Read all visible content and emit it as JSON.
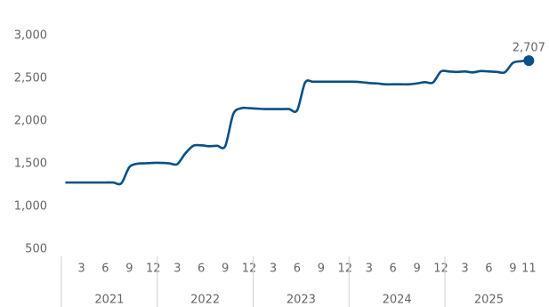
{
  "chart_data": {
    "type": "line",
    "categories": [
      null,
      null,
      "3",
      null,
      null,
      "6",
      null,
      null,
      "9",
      null,
      null,
      "12",
      null,
      null,
      "3",
      null,
      null,
      "6",
      null,
      null,
      "9",
      null,
      null,
      "12",
      null,
      null,
      "3",
      null,
      null,
      "6",
      null,
      null,
      "9",
      null,
      null,
      "12",
      null,
      null,
      "3",
      null,
      null,
      "6",
      null,
      null,
      "9",
      null,
      null,
      "12",
      null,
      null,
      "3",
      null,
      null,
      "6",
      null,
      null,
      "9",
      null,
      "11"
    ],
    "years": [
      "2021",
      "2022",
      "2023",
      "2024",
      "2025"
    ],
    "series": [
      {
        "color": "#0b4f86",
        "values": [
          1280,
          1280,
          1280,
          1280,
          1280,
          1280,
          1280,
          1270,
          1460,
          1500,
          1505,
          1510,
          1510,
          1505,
          1495,
          1620,
          1710,
          1715,
          1705,
          1710,
          1705,
          2080,
          2150,
          2150,
          2145,
          2140,
          2140,
          2140,
          2140,
          2125,
          2450,
          2460,
          2460,
          2460,
          2460,
          2460,
          2460,
          2455,
          2445,
          2440,
          2430,
          2430,
          2430,
          2430,
          2440,
          2455,
          2450,
          2580,
          2580,
          2575,
          2580,
          2570,
          2585,
          2580,
          2575,
          2570,
          2680,
          2700,
          2707
        ],
        "value_labels": [
          null,
          null,
          null,
          null,
          null,
          null,
          null,
          null,
          null,
          null,
          null,
          null,
          null,
          null,
          null,
          null,
          null,
          null,
          null,
          null,
          null,
          null,
          null,
          null,
          null,
          null,
          null,
          null,
          null,
          null,
          null,
          null,
          null,
          null,
          null,
          null,
          null,
          null,
          null,
          null,
          null,
          null,
          null,
          null,
          null,
          null,
          null,
          null,
          null,
          null,
          null,
          null,
          null,
          null,
          null,
          null,
          null,
          null,
          "2,707"
        ]
      }
    ],
    "ylim": [
      500,
      3000
    ],
    "yticks": [
      {
        "value": 500,
        "label": "500"
      },
      {
        "value": 1000,
        "label": "1,000"
      },
      {
        "value": 1500,
        "label": "1,500"
      },
      {
        "value": 2000,
        "label": "2,000"
      },
      {
        "value": 2500,
        "label": "2,500"
      },
      {
        "value": 3000,
        "label": "3,000"
      }
    ]
  }
}
